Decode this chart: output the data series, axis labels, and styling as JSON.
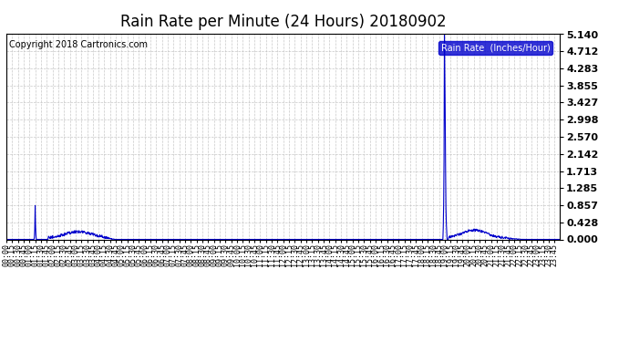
{
  "title": "Rain Rate per Minute (24 Hours) 20180902",
  "copyright_text": "Copyright 2018 Cartronics.com",
  "legend_label": "Rain Rate  (Inches/Hour)",
  "y_ticks": [
    0.0,
    0.428,
    0.857,
    1.285,
    1.713,
    2.142,
    2.57,
    2.998,
    3.427,
    3.855,
    4.283,
    4.712,
    5.14
  ],
  "y_max": 5.14,
  "y_min": 0.0,
  "num_minutes": 1440,
  "background_color": "#ffffff",
  "plot_bg_color": "#ffffff",
  "line_color": "#0000cc",
  "grid_color": "#bbbbbb",
  "title_fontsize": 12,
  "tick_fontsize": 6,
  "legend_box_color": "#0000cc",
  "legend_text_color": "#ffffff",
  "copyright_fontsize": 7,
  "ylabel_fontsize": 8,
  "ylabel_fontweight": "bold"
}
